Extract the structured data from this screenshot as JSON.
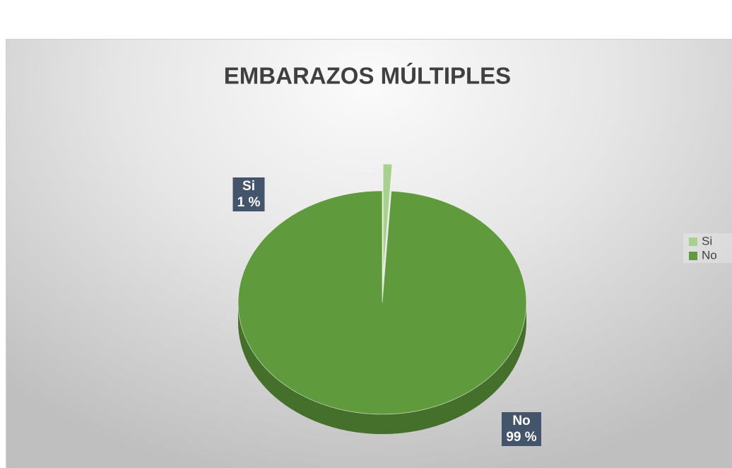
{
  "chart_data": {
    "type": "pie",
    "title": "EMBARAZOS MÚLTIPLES",
    "categories": [
      "Si",
      "No"
    ],
    "values": [
      1,
      99
    ],
    "value_labels": [
      "1 %",
      "99 %"
    ],
    "colors": [
      "#a9d18e",
      "#5f9b3d"
    ],
    "legend": "right",
    "exploded": [
      true,
      false
    ]
  }
}
